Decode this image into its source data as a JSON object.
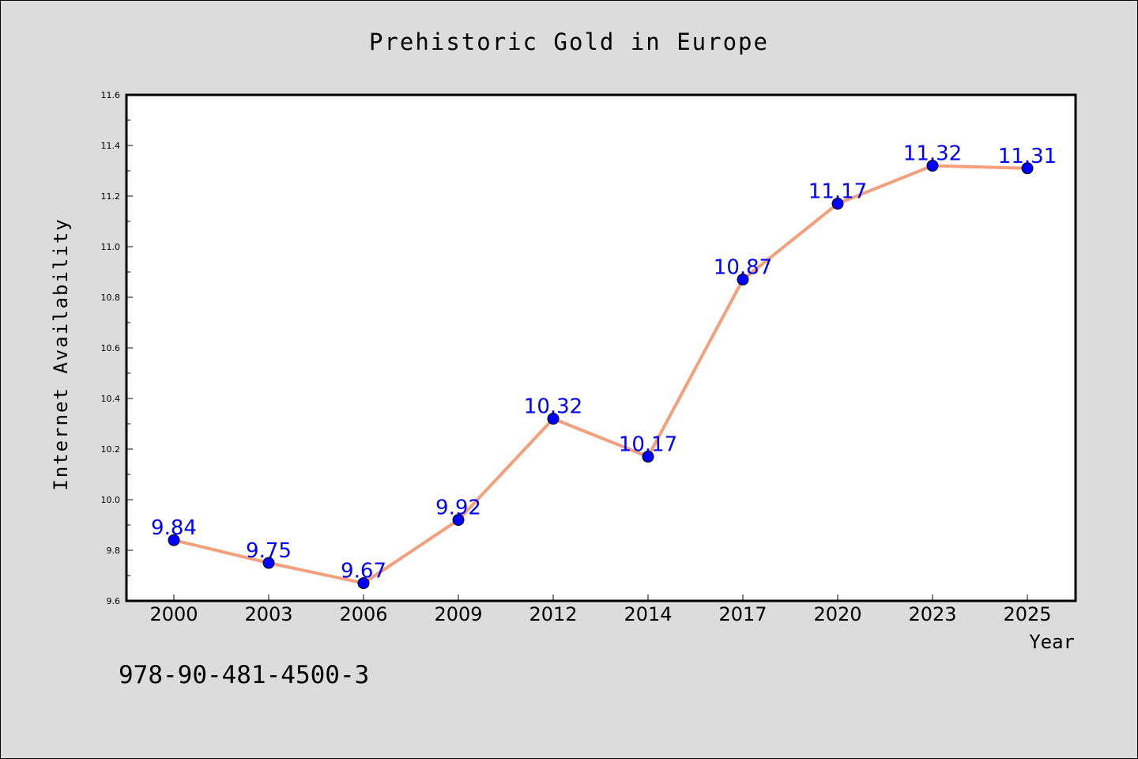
{
  "chart_data": {
    "type": "line",
    "title": "Prehistoric Gold in Europe",
    "xlabel": "Year",
    "ylabel": "Internet Availability",
    "categories": [
      "2000",
      "2003",
      "2006",
      "2009",
      "2012",
      "2014",
      "2017",
      "2020",
      "2023",
      "2025"
    ],
    "values": [
      9.84,
      9.75,
      9.67,
      9.92,
      10.32,
      10.17,
      10.87,
      11.17,
      11.32,
      11.31
    ],
    "data_labels": [
      "9.84",
      "9.75",
      "9.67",
      "9.92",
      "10.32",
      "10.17",
      "10.87",
      "11.17",
      "11.32",
      "11.31"
    ],
    "ylim": [
      9.6,
      11.6
    ],
    "yticks": [
      "9.6",
      "9.8",
      "10.0",
      "10.2",
      "10.4",
      "10.6",
      "10.8",
      "11.0",
      "11.2",
      "11.4",
      "11.6"
    ],
    "grid": false,
    "legend": "none",
    "line_color": "#f4a07c",
    "marker_color": "#0000ff",
    "label_color": "#0000ff"
  },
  "annotation": {
    "isbn": "978-90-481-4500-3"
  }
}
